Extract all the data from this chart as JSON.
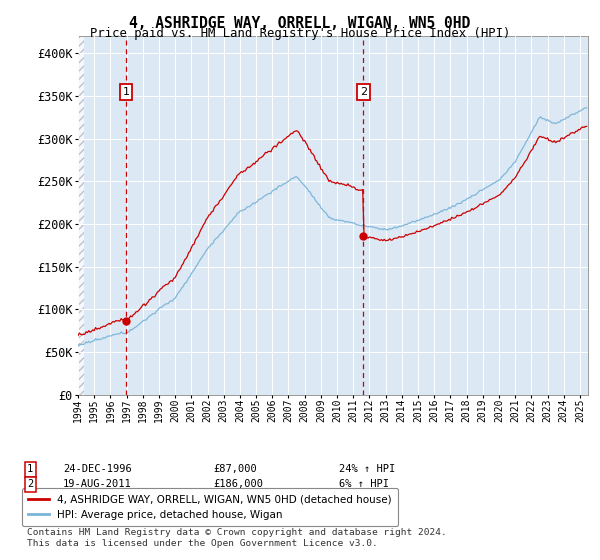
{
  "title": "4, ASHRIDGE WAY, ORRELL, WIGAN, WN5 0HD",
  "subtitle": "Price paid vs. HM Land Registry's House Price Index (HPI)",
  "legend_line1": "4, ASHRIDGE WAY, ORRELL, WIGAN, WN5 0HD (detached house)",
  "legend_line2": "HPI: Average price, detached house, Wigan",
  "sale1_date": "24-DEC-1996",
  "sale1_price": "£87,000",
  "sale1_hpi": "24% ↑ HPI",
  "sale1_year": 1996.97,
  "sale1_value": 87000,
  "sale2_date": "19-AUG-2011",
  "sale2_price": "£186,000",
  "sale2_hpi": "6% ↑ HPI",
  "sale2_year": 2011.62,
  "sale2_value": 186000,
  "hpi_color": "#7ab4d8",
  "sale_color": "#cc0000",
  "footnote": "Contains HM Land Registry data © Crown copyright and database right 2024.\nThis data is licensed under the Open Government Licence v3.0.",
  "ylim": [
    0,
    420000
  ],
  "yticks": [
    0,
    50000,
    100000,
    150000,
    200000,
    250000,
    300000,
    350000,
    400000
  ],
  "ytick_labels": [
    "£0",
    "£50K",
    "£100K",
    "£150K",
    "£200K",
    "£250K",
    "£300K",
    "£350K",
    "£400K"
  ],
  "background_color": "#dce9f5",
  "xstart": 1994,
  "xend": 2025.5
}
